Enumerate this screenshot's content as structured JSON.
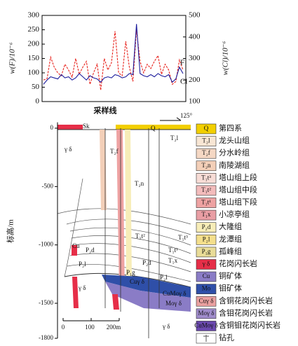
{
  "chart_data": {
    "type": "line",
    "xlabel": "采样线",
    "ylabel": "w(F)/10⁻⁶",
    "y2label": "w(Cl)/10⁻⁶",
    "categories": [
      null,
      null,
      null,
      null,
      null,
      null,
      null,
      null,
      null,
      null,
      null,
      null,
      null,
      null,
      null,
      null,
      null,
      null,
      null,
      null,
      null,
      null,
      null,
      null,
      null,
      null,
      null,
      null,
      null,
      null,
      null,
      null,
      null,
      null,
      null,
      null,
      null,
      null,
      null,
      null
    ],
    "ylim": [
      0,
      300
    ],
    "yticks": [
      0,
      50,
      100,
      150,
      200,
      250,
      300
    ],
    "y2lim": [
      100,
      500
    ],
    "y2ticks": [
      100,
      200,
      300,
      400,
      500
    ],
    "series": [
      {
        "name": "F",
        "color": "#e8251f",
        "dashed": true,
        "values": [
          75,
          80,
          155,
          120,
          100,
          90,
          130,
          110,
          85,
          150,
          95,
          120,
          140,
          60,
          100,
          130,
          40,
          150,
          110,
          135,
          245,
          100,
          90,
          210,
          120,
          70,
          250,
          140,
          100,
          130,
          115,
          140,
          160,
          95,
          130,
          110,
          60,
          70,
          145,
          110
        ]
      },
      {
        "name": "Cl",
        "color": "#1c1c9c",
        "dashed": false,
        "axis": "y2",
        "values": [
          180,
          200,
          215,
          210,
          205,
          225,
          210,
          215,
          200,
          210,
          230,
          215,
          200,
          220,
          210,
          205,
          190,
          210,
          215,
          210,
          225,
          220,
          210,
          215,
          230,
          225,
          460,
          230,
          220,
          215,
          225,
          215,
          230,
          220,
          215,
          225,
          190,
          205,
          260,
          230
        ]
      }
    ]
  },
  "cross_section": {
    "ylabel": "标高/m",
    "ylim": [
      -1800,
      50
    ],
    "yticks": [
      0,
      -500,
      -1000,
      -1500,
      -1800
    ],
    "orientation": "125°",
    "scale_bar": [
      "0",
      "100",
      "200m"
    ],
    "labels": [
      "Sk",
      "Q",
      "T₂l",
      "T₂f",
      "γ δ",
      "T₂n",
      "T₁t³",
      "T₁t²",
      "T₁t¹",
      "T₁x",
      "Cu",
      "P₂d",
      "P₂l",
      "P₂d",
      "P₁g",
      "P₂l",
      "γ δ",
      "Cuγ δ",
      "CuMoγ δ",
      "Moγ δ",
      "γ δ"
    ],
    "legend": [
      {
        "symbol": "Q",
        "label": "第四系",
        "color": "#f2cf00"
      },
      {
        "symbol": "T₂l",
        "label": "龙头山组",
        "color": "#f8e6d4"
      },
      {
        "symbol": "T₂f",
        "label": "分水岭组",
        "color": "#f5d8c4"
      },
      {
        "symbol": "T₂n",
        "label": "南陵湖组",
        "color": "#f3cfb8"
      },
      {
        "symbol": "T₁t³",
        "label": "塔山组上段",
        "color": "#f7dcd6"
      },
      {
        "symbol": "T₁t²",
        "label": "塔山组中段",
        "color": "#f3bcbc"
      },
      {
        "symbol": "T₁t¹",
        "label": "塔山组下段",
        "color": "#eea2a2"
      },
      {
        "symbol": "T₁x",
        "label": "小凉亭组",
        "color": "#e99ea4"
      },
      {
        "symbol": "P₂d",
        "label": "大隆组",
        "color": "#f7edb8"
      },
      {
        "symbol": "P₂l",
        "label": "龙潭组",
        "color": "#f4df8c"
      },
      {
        "symbol": "P₁g",
        "label": "孤峰组",
        "color": "#e9dc98"
      },
      {
        "symbol": "γ δ",
        "label": "花岗闪长岩",
        "color": "#e62e48"
      },
      {
        "symbol": "Cu",
        "label": "铜矿体",
        "color": "#8a7cc6"
      },
      {
        "symbol": "Mo",
        "label": "钼矿体",
        "color": "#2f4fa8"
      },
      {
        "symbol": "Cuγ δ",
        "label": "含铜花岗闪长岩",
        "color": "#eaa0a0"
      },
      {
        "symbol": "Moγ δ",
        "label": "含钼花岗闪长岩",
        "color": "#a08ccc"
      },
      {
        "symbol": "CuMoγ δ",
        "label": "含铜钼花岗闪长岩",
        "color": "#6a48ae"
      },
      {
        "label": "钻孔",
        "color": "#ffffff"
      }
    ]
  }
}
